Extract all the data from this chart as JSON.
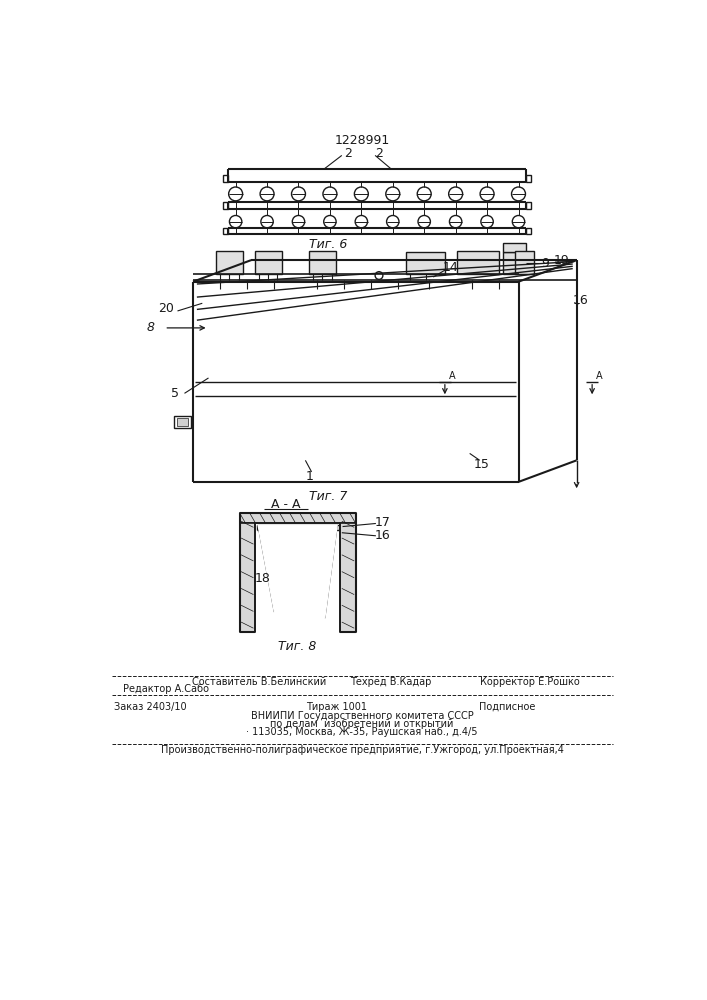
{
  "patent_number": "1228991",
  "bg_color": "#ffffff",
  "line_color": "#1a1a1a",
  "fig6_label": "Τиг. 6",
  "fig7_label": "Τиг. 7",
  "fig8_label": "Τиг. 8",
  "section_label": "A - A",
  "label_2a": "2",
  "label_2b": "2",
  "label_1": "1",
  "label_5": "5",
  "label_8": "8",
  "label_9": "9",
  "label_14": "14",
  "label_15": "15",
  "label_16": "16",
  "label_17": "17",
  "label_18": "18",
  "label_19": "19",
  "label_20": "20",
  "footer_editor": "Редактор А.Сабо",
  "footer_compiler": "Составитель В.Белинский",
  "footer_techred": "Техред В.Кадар",
  "footer_corrector": "Корректор Е.Рошко",
  "footer_order": "Заказ 2403/10",
  "footer_tirazh": "Тираж 1001",
  "footer_podp": "Подписное",
  "footer_vniip1": "ВНИИПИ Государственного комитета СССР",
  "footer_vniip2": "по делам  изобретений и открытий",
  "footer_addr": "· 113035, Москва, Ж-35, Раушская наб., д.4/5",
  "footer_prod": "Производственно-полиграфическое предприятие, г.Ужгород, ул.Проектная,4"
}
